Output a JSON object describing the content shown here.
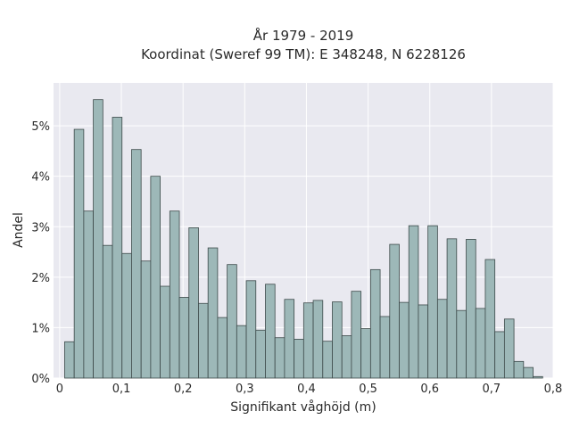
{
  "chart_data": {
    "type": "bar",
    "title_line1": "År 1979 - 2019",
    "title_line2": "Koordinat (Sweref 99 TM): E 348248, N 6228126",
    "xlabel": "Signifikant våghöjd (m)",
    "ylabel": "Andel",
    "xlim": [
      -0.01,
      0.8
    ],
    "ylim": [
      0,
      5.85
    ],
    "bin_width": 0.0155,
    "x_start": 0.008,
    "x_ticks": [
      0,
      0.1,
      0.2,
      0.3,
      0.4,
      0.5,
      0.6,
      0.7,
      0.8
    ],
    "x_tick_labels": [
      "0",
      "0,1",
      "0,2",
      "0,3",
      "0,4",
      "0,5",
      "0,6",
      "0,7",
      "0,8"
    ],
    "y_ticks": [
      0,
      1,
      2,
      3,
      4,
      5
    ],
    "y_tick_labels": [
      "0%",
      "1%",
      "2%",
      "3%",
      "4%",
      "5%"
    ],
    "values": [
      0.72,
      4.93,
      3.31,
      5.52,
      2.63,
      5.17,
      2.47,
      4.53,
      2.32,
      4.0,
      1.82,
      3.31,
      1.6,
      2.98,
      1.48,
      2.58,
      1.2,
      2.25,
      1.04,
      1.93,
      0.95,
      1.86,
      0.8,
      1.56,
      0.77,
      1.49,
      1.54,
      0.73,
      1.51,
      0.84,
      1.72,
      0.98,
      2.15,
      1.22,
      2.65,
      1.5,
      3.02,
      1.45,
      3.02,
      1.56,
      2.76,
      1.34,
      2.75,
      1.38,
      2.35,
      0.92,
      1.17,
      0.33,
      0.21,
      0.03
    ],
    "grid": true,
    "colors": {
      "bar_fill": "#9db8b8",
      "bar_stroke": "#3d4a4a",
      "plot_bg": "#e9e9f0",
      "grid": "#ffffff"
    }
  }
}
